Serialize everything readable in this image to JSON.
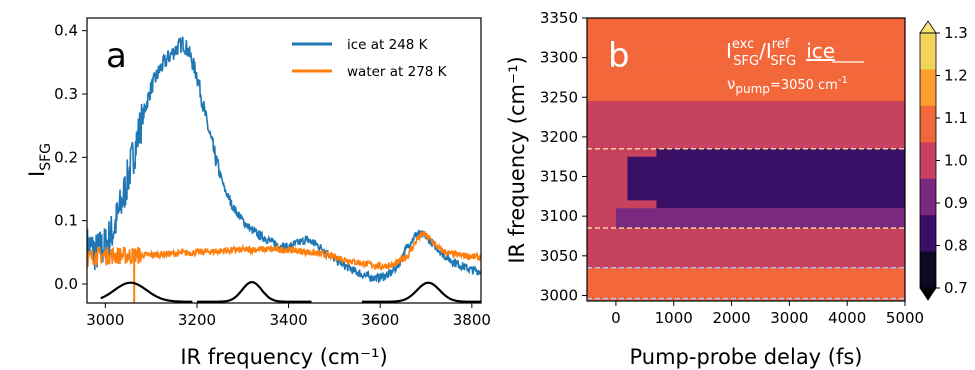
{
  "colors": {
    "ice": "#1f77b4",
    "water": "#ff7f0e",
    "gaussians": "#000000",
    "map_levels": [
      "#000004",
      "#3b0f70",
      "#8c2981",
      "#de4968",
      "#fe9f6d",
      "#fcfdbf"
    ],
    "dashed_lines": [
      "#ffe3a0",
      "#a8c8ff"
    ]
  },
  "chart_data": [
    {
      "type": "line",
      "panel": "a",
      "xlabel": "IR frequency (cm⁻¹)",
      "ylabel": "I",
      "ylabel_sub": "SFG",
      "xlim": [
        2960,
        3820
      ],
      "ylim": [
        -0.03,
        0.42
      ],
      "xticks": [
        3000,
        3200,
        3400,
        3600,
        3800
      ],
      "yticks": [
        0.0,
        0.1,
        0.2,
        0.3,
        0.4
      ],
      "ytick_labels": [
        "0.0",
        "0.1",
        "0.2",
        "0.3",
        "0.4"
      ],
      "legend_position": "top-right",
      "series": [
        {
          "name": "ice at 248 K",
          "color_key": "ice",
          "x": [
            2960,
            2980,
            3000,
            3020,
            3040,
            3060,
            3080,
            3100,
            3120,
            3140,
            3160,
            3170,
            3180,
            3200,
            3220,
            3240,
            3260,
            3280,
            3300,
            3320,
            3340,
            3360,
            3380,
            3400,
            3420,
            3440,
            3460,
            3480,
            3500,
            3520,
            3540,
            3560,
            3580,
            3600,
            3620,
            3640,
            3660,
            3680,
            3700,
            3720,
            3740,
            3760,
            3780,
            3800,
            3820
          ],
          "y": [
            0.06,
            0.05,
            0.06,
            0.09,
            0.14,
            0.2,
            0.26,
            0.31,
            0.34,
            0.36,
            0.375,
            0.38,
            0.37,
            0.33,
            0.26,
            0.2,
            0.15,
            0.12,
            0.1,
            0.085,
            0.075,
            0.068,
            0.06,
            0.058,
            0.065,
            0.07,
            0.063,
            0.052,
            0.04,
            0.03,
            0.022,
            0.015,
            0.01,
            0.01,
            0.015,
            0.03,
            0.06,
            0.08,
            0.075,
            0.06,
            0.045,
            0.035,
            0.028,
            0.022,
            0.02
          ]
        },
        {
          "name": "water at 278 K",
          "color_key": "water",
          "x": [
            2960,
            2980,
            3000,
            3050,
            3100,
            3150,
            3200,
            3250,
            3300,
            3350,
            3400,
            3450,
            3500,
            3550,
            3600,
            3630,
            3660,
            3680,
            3695,
            3710,
            3730,
            3750,
            3780,
            3820
          ],
          "y": [
            0.04,
            0.045,
            0.045,
            0.045,
            0.046,
            0.048,
            0.05,
            0.052,
            0.054,
            0.055,
            0.054,
            0.05,
            0.043,
            0.034,
            0.028,
            0.03,
            0.045,
            0.07,
            0.08,
            0.07,
            0.055,
            0.048,
            0.045,
            0.042
          ]
        },
        {
          "name": "",
          "color_key": "gaussians",
          "type": "gaussian",
          "centers": [
            3055,
            3320,
            3705
          ],
          "amplitudes": [
            0.03,
            0.031,
            0.03
          ],
          "widths": [
            50,
            30,
            35
          ],
          "ranges": [
            [
              2990,
              3190
            ],
            [
              3200,
              3450
            ],
            [
              3560,
              3820
            ]
          ]
        }
      ]
    },
    {
      "type": "heatmap",
      "panel": "b",
      "xlabel": "Pump-probe delay (fs)",
      "ylabel": "IR frequency (cm⁻¹)",
      "xlim": [
        -500,
        5000
      ],
      "ylim": [
        2993,
        3350
      ],
      "xticks": [
        0,
        1000,
        2000,
        3000,
        4000,
        5000
      ],
      "yticks": [
        3000,
        3050,
        3100,
        3150,
        3200,
        3250,
        3300,
        3350
      ],
      "levels": [
        0.7,
        0.8,
        0.9,
        1.0,
        1.1,
        1.2,
        1.3
      ],
      "colorbar_ticks": [
        "0.7",
        "0.8",
        "0.9",
        "1.0",
        "1.1",
        "1.2",
        "1.3"
      ],
      "dashed_lines": [
        3185,
        3085,
        3035,
        2996
      ],
      "bands": [
        {
          "y": [
            3320,
            3350
          ],
          "level": 1.15
        },
        {
          "y": [
            3290,
            3320
          ],
          "level": 1.1
        },
        {
          "y": [
            3245,
            3290
          ],
          "level": 1.05
        },
        {
          "y": [
            3185,
            3245
          ],
          "level": 0.95
        },
        {
          "y": [
            3110,
            3185
          ],
          "level": 0.75
        },
        {
          "y": [
            3085,
            3110
          ],
          "level": 0.9
        },
        {
          "y": [
            3035,
            3085
          ],
          "level": 1.0
        },
        {
          "y": [
            2993,
            3035
          ],
          "level": 1.05
        }
      ]
    }
  ],
  "annotations": {
    "panel_a_letter": "a",
    "panel_b_letter": "b",
    "ratio_main": "I",
    "ratio_sup1": "exc",
    "ratio_sub1": "SFG",
    "ratio_slash": "/I",
    "ratio_sup2": "ref",
    "ratio_sub2": "SFG",
    "ratio_material": "ice",
    "pump_label": "ν",
    "pump_sub": "pump",
    "pump_value": "=3050 cm",
    "pump_sup": "-1"
  }
}
